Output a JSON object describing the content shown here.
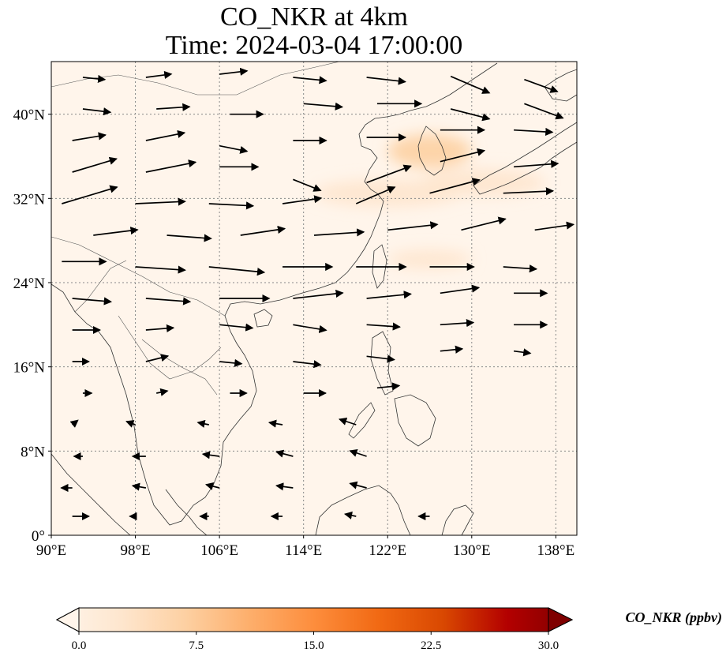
{
  "title": {
    "line1": "CO_NKR at 4km",
    "line2": "Time: 2024-03-04 17:00:00"
  },
  "map": {
    "extent": {
      "lon_min": 90,
      "lon_max": 140,
      "lat_min": 0,
      "lat_max": 45
    },
    "x_ticks": [
      {
        "lon": 90,
        "label": "90°E"
      },
      {
        "lon": 98,
        "label": "98°E"
      },
      {
        "lon": 106,
        "label": "106°E"
      },
      {
        "lon": 114,
        "label": "114°E"
      },
      {
        "lon": 122,
        "label": "122°E"
      },
      {
        "lon": 130,
        "label": "130°E"
      },
      {
        "lon": 138,
        "label": "138°E"
      }
    ],
    "y_ticks": [
      {
        "lat": 0,
        "label": "0°"
      },
      {
        "lat": 8,
        "label": "8°N"
      },
      {
        "lat": 16,
        "label": "16°N"
      },
      {
        "lat": 24,
        "label": "24°N"
      },
      {
        "lat": 32,
        "label": "32°N"
      },
      {
        "lat": 40,
        "label": "40°N"
      }
    ],
    "background_color": "#fff5eb",
    "gridlines": true,
    "concentration_patches": [
      {
        "lon": 126,
        "lat": 36.5,
        "rlon": 4,
        "rlat": 1.6,
        "value": 4.5
      },
      {
        "lon": 122,
        "lat": 32.5,
        "rlon": 7,
        "rlat": 1.3,
        "value": 3.5
      },
      {
        "lon": 131,
        "lat": 33.5,
        "rlon": 6,
        "rlat": 1.3,
        "value": 3.5
      },
      {
        "lon": 126,
        "lat": 26.2,
        "rlon": 4,
        "rlat": 0.9,
        "value": 2
      }
    ],
    "wind_vectors": [
      {
        "lon": 93,
        "lat": 43.5,
        "u": 2,
        "v": -0.2
      },
      {
        "lon": 99,
        "lat": 43.5,
        "u": 2.3,
        "v": 0.3
      },
      {
        "lon": 106,
        "lat": 43.8,
        "u": 2.5,
        "v": 0.3
      },
      {
        "lon": 113,
        "lat": 43.5,
        "u": 3,
        "v": -0.3
      },
      {
        "lon": 120,
        "lat": 43.5,
        "u": 3.5,
        "v": -0.4
      },
      {
        "lon": 128,
        "lat": 43.6,
        "u": 3.5,
        "v": -1.5
      },
      {
        "lon": 135,
        "lat": 43.3,
        "u": 3,
        "v": -1.1
      },
      {
        "lon": 93,
        "lat": 40.5,
        "u": 2.5,
        "v": -0.3
      },
      {
        "lon": 100,
        "lat": 40.5,
        "u": 3,
        "v": 0.2
      },
      {
        "lon": 107,
        "lat": 40,
        "u": 3,
        "v": 0
      },
      {
        "lon": 114,
        "lat": 41,
        "u": 3.5,
        "v": -0.3
      },
      {
        "lon": 121,
        "lat": 41,
        "u": 4,
        "v": 0
      },
      {
        "lon": 128,
        "lat": 40.5,
        "u": 3.5,
        "v": -0.9
      },
      {
        "lon": 135,
        "lat": 41,
        "u": 3.5,
        "v": -1.3
      },
      {
        "lon": 92,
        "lat": 37.5,
        "u": 3,
        "v": 0.5
      },
      {
        "lon": 99,
        "lat": 37.5,
        "u": 3.5,
        "v": 0.7
      },
      {
        "lon": 106,
        "lat": 37,
        "u": 2.5,
        "v": -0.5
      },
      {
        "lon": 113,
        "lat": 37.5,
        "u": 3,
        "v": 0
      },
      {
        "lon": 120,
        "lat": 37.8,
        "u": 3.5,
        "v": 0
      },
      {
        "lon": 127,
        "lat": 38.5,
        "u": 4,
        "v": 0
      },
      {
        "lon": 134,
        "lat": 38.5,
        "u": 3.5,
        "v": -0.2
      },
      {
        "lon": 92,
        "lat": 34.5,
        "u": 4,
        "v": 1.2
      },
      {
        "lon": 99,
        "lat": 34.5,
        "u": 4.5,
        "v": 0.9
      },
      {
        "lon": 106,
        "lat": 35,
        "u": 3.5,
        "v": 0
      },
      {
        "lon": 113,
        "lat": 33.8,
        "u": 2.5,
        "v": -1
      },
      {
        "lon": 120,
        "lat": 33.5,
        "u": 4,
        "v": 1.5
      },
      {
        "lon": 127,
        "lat": 35.5,
        "u": 4,
        "v": 1
      },
      {
        "lon": 134,
        "lat": 35,
        "u": 4,
        "v": 0.3
      },
      {
        "lon": 91,
        "lat": 31.5,
        "u": 5,
        "v": 1.5
      },
      {
        "lon": 98,
        "lat": 31.5,
        "u": 4.5,
        "v": 0.2
      },
      {
        "lon": 105,
        "lat": 31.5,
        "u": 4,
        "v": -0.2
      },
      {
        "lon": 112,
        "lat": 31.5,
        "u": 3.5,
        "v": 0.5
      },
      {
        "lon": 119,
        "lat": 31.5,
        "u": 3.5,
        "v": 1.5
      },
      {
        "lon": 126,
        "lat": 32.5,
        "u": 4.5,
        "v": 1.2
      },
      {
        "lon": 133,
        "lat": 32.5,
        "u": 4.5,
        "v": 0.2
      },
      {
        "lon": 94,
        "lat": 28.5,
        "u": 4,
        "v": 0.5
      },
      {
        "lon": 101,
        "lat": 28.5,
        "u": 4,
        "v": -0.3
      },
      {
        "lon": 108,
        "lat": 28.5,
        "u": 4,
        "v": 0.6
      },
      {
        "lon": 115,
        "lat": 28.5,
        "u": 4.5,
        "v": 0.3
      },
      {
        "lon": 122,
        "lat": 29,
        "u": 4.5,
        "v": 0.5
      },
      {
        "lon": 129,
        "lat": 29,
        "u": 4,
        "v": 1
      },
      {
        "lon": 136,
        "lat": 29,
        "u": 3.5,
        "v": 0.5
      },
      {
        "lon": 91,
        "lat": 26,
        "u": 4,
        "v": 0
      },
      {
        "lon": 98,
        "lat": 25.5,
        "u": 4.5,
        "v": -0.3
      },
      {
        "lon": 105,
        "lat": 25.5,
        "u": 5,
        "v": -0.5
      },
      {
        "lon": 112,
        "lat": 25.5,
        "u": 4.5,
        "v": 0
      },
      {
        "lon": 119,
        "lat": 25.5,
        "u": 4.5,
        "v": 0
      },
      {
        "lon": 126,
        "lat": 25.5,
        "u": 4,
        "v": 0
      },
      {
        "lon": 133,
        "lat": 25.5,
        "u": 3,
        "v": -0.2
      },
      {
        "lon": 92,
        "lat": 22.5,
        "u": 3.5,
        "v": -0.3
      },
      {
        "lon": 99,
        "lat": 22.5,
        "u": 4,
        "v": -0.3
      },
      {
        "lon": 106,
        "lat": 22.5,
        "u": 4.5,
        "v": 0
      },
      {
        "lon": 113,
        "lat": 22.5,
        "u": 4.5,
        "v": 0.5
      },
      {
        "lon": 120,
        "lat": 22.5,
        "u": 4,
        "v": 0.4
      },
      {
        "lon": 127,
        "lat": 23,
        "u": 3.5,
        "v": 0.5
      },
      {
        "lon": 134,
        "lat": 23,
        "u": 3,
        "v": 0
      },
      {
        "lon": 92,
        "lat": 19.5,
        "u": 2.5,
        "v": 0
      },
      {
        "lon": 99,
        "lat": 19.5,
        "u": 2.5,
        "v": 0.2
      },
      {
        "lon": 106,
        "lat": 20,
        "u": 3,
        "v": -0.3
      },
      {
        "lon": 113,
        "lat": 20,
        "u": 3,
        "v": -0.5
      },
      {
        "lon": 120,
        "lat": 20,
        "u": 3,
        "v": -0.2
      },
      {
        "lon": 127,
        "lat": 20,
        "u": 3,
        "v": 0.2
      },
      {
        "lon": 134,
        "lat": 20,
        "u": 3,
        "v": 0
      },
      {
        "lon": 92,
        "lat": 16.5,
        "u": 1.5,
        "v": 0
      },
      {
        "lon": 99,
        "lat": 16.5,
        "u": 2,
        "v": 0.5
      },
      {
        "lon": 106,
        "lat": 16.5,
        "u": 2,
        "v": -0.2
      },
      {
        "lon": 113,
        "lat": 16.5,
        "u": 2.5,
        "v": -0.3
      },
      {
        "lon": 120,
        "lat": 17,
        "u": 2.5,
        "v": -0.3
      },
      {
        "lon": 127,
        "lat": 17.5,
        "u": 2,
        "v": 0.2
      },
      {
        "lon": 134,
        "lat": 17.5,
        "u": 1.5,
        "v": -0.2
      },
      {
        "lon": 93,
        "lat": 13.5,
        "u": 0.8,
        "v": 0
      },
      {
        "lon": 100,
        "lat": 13.5,
        "u": 1,
        "v": 0.2
      },
      {
        "lon": 107,
        "lat": 13.5,
        "u": 1.5,
        "v": 0
      },
      {
        "lon": 114,
        "lat": 13.5,
        "u": 2,
        "v": 0
      },
      {
        "lon": 121,
        "lat": 14,
        "u": 2,
        "v": 0.2
      },
      {
        "lon": 92,
        "lat": 10.5,
        "u": 0.5,
        "v": 0.4
      },
      {
        "lon": 98,
        "lat": 10.5,
        "u": -0.8,
        "v": 0.3
      },
      {
        "lon": 105,
        "lat": 10.5,
        "u": -1,
        "v": 0.2
      },
      {
        "lon": 112,
        "lat": 10.5,
        "u": -1.2,
        "v": 0.2
      },
      {
        "lon": 119,
        "lat": 10.5,
        "u": -1.5,
        "v": 0.5
      },
      {
        "lon": 93,
        "lat": 7.5,
        "u": -0.8,
        "v": 0
      },
      {
        "lon": 99,
        "lat": 7.5,
        "u": -1.2,
        "v": 0
      },
      {
        "lon": 106,
        "lat": 7.5,
        "u": -1.5,
        "v": 0.2
      },
      {
        "lon": 113,
        "lat": 7.5,
        "u": -1.5,
        "v": 0.4
      },
      {
        "lon": 120,
        "lat": 7.5,
        "u": -1.5,
        "v": 0.5
      },
      {
        "lon": 92,
        "lat": 4.5,
        "u": -1,
        "v": 0
      },
      {
        "lon": 99,
        "lat": 4.5,
        "u": -1.2,
        "v": 0.2
      },
      {
        "lon": 106,
        "lat": 4.5,
        "u": -1.2,
        "v": 0.3
      },
      {
        "lon": 113,
        "lat": 4.5,
        "u": -1.5,
        "v": 0.2
      },
      {
        "lon": 120,
        "lat": 4.5,
        "u": -1.5,
        "v": 0.4
      },
      {
        "lon": 92,
        "lat": 1.8,
        "u": 1.5,
        "v": 0
      },
      {
        "lon": 98,
        "lat": 1.8,
        "u": -0.5,
        "v": 0
      },
      {
        "lon": 105,
        "lat": 1.8,
        "u": -0.8,
        "v": 0
      },
      {
        "lon": 112,
        "lat": 1.8,
        "u": -1,
        "v": 0
      },
      {
        "lon": 119,
        "lat": 1.8,
        "u": -1,
        "v": 0.2
      },
      {
        "lon": 126,
        "lat": 1.8,
        "u": -1,
        "v": 0
      }
    ]
  },
  "colorbar": {
    "label": "CO_NKR (ppbv)",
    "vmin": 0,
    "vmax": 30,
    "ticks": [
      "0.0",
      "7.5",
      "15.0",
      "22.5",
      "30.0"
    ],
    "colormap": [
      "#fff5eb",
      "#fee6ce",
      "#fdd0a2",
      "#fdae6b",
      "#fd8d3c",
      "#f16913",
      "#d94801",
      "#b30000",
      "#7f0000"
    ],
    "extend": "both"
  }
}
